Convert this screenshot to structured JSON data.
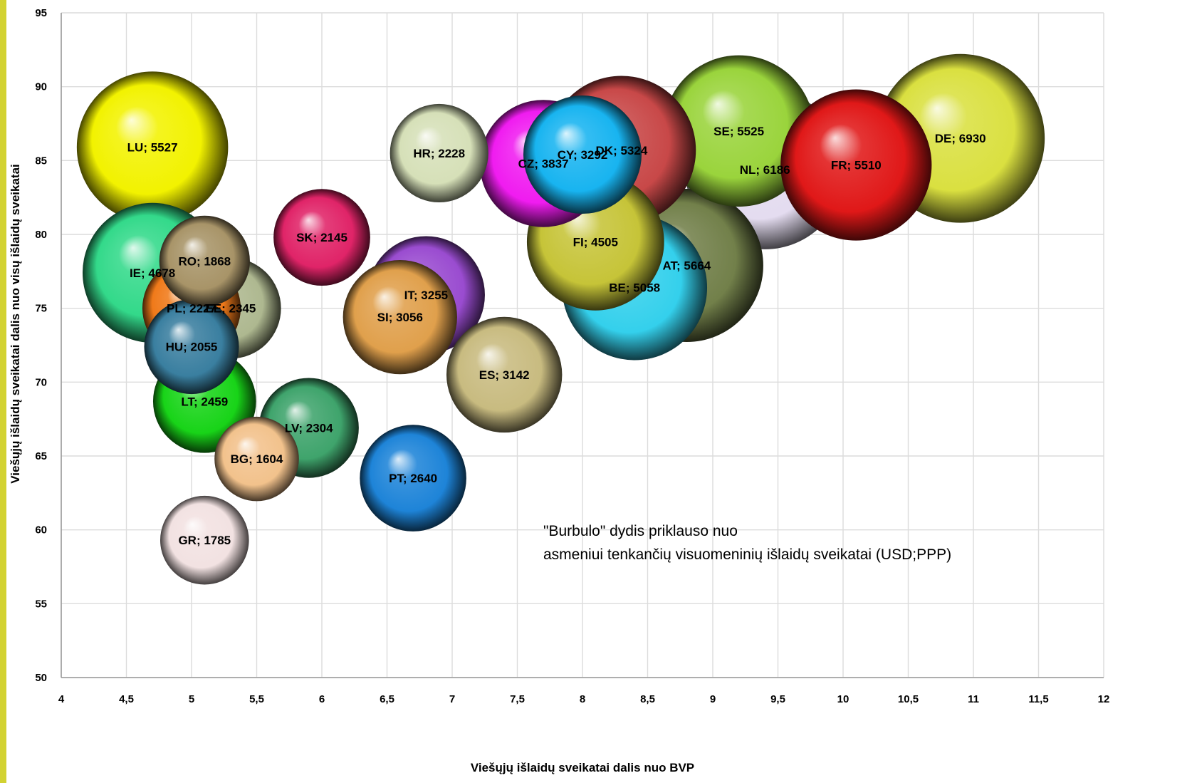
{
  "chart_data": {
    "type": "bubble",
    "xlabel": "Viešųjų išlaidų sveikatai dalis nuo BVP",
    "ylabel": "Viešųjų išlaidų sveikatai dalis nuo visų išlaidų sveikatai",
    "xlim": [
      4,
      12
    ],
    "ylim": [
      50,
      95
    ],
    "x_ticks": [
      "4",
      "4,5",
      "5",
      "5,5",
      "6",
      "6,5",
      "7",
      "7,5",
      "8",
      "8,5",
      "9",
      "9,5",
      "10",
      "10,5",
      "11",
      "11,5",
      "12"
    ],
    "y_ticks": [
      "50",
      "55",
      "60",
      "65",
      "70",
      "75",
      "80",
      "85",
      "90",
      "95"
    ],
    "grid": true,
    "legend": "none",
    "annotation": [
      "\"Burbulo\" dydis priklauso nuo",
      "asmeniui tenkančių visuomeninių išlaidų sveikatai (USD;PPP)"
    ],
    "points": [
      {
        "code": "LU",
        "x": 4.7,
        "y": 85.9,
        "size": 5527,
        "label": "LU; 5527",
        "color": "#f2f200"
      },
      {
        "code": "IE",
        "x": 4.7,
        "y": 77.4,
        "size": 4678,
        "label": "IE; 4678",
        "color": "#33d98a"
      },
      {
        "code": "HU",
        "x": 5.0,
        "y": 72.4,
        "size": 2055,
        "label": "HU; 2055",
        "color": "#3a7fa0"
      },
      {
        "code": "EE",
        "x": 5.3,
        "y": 75.0,
        "size": 2345,
        "label": "EE; 2345",
        "color": "#aeb890"
      },
      {
        "code": "PL",
        "x": 5.0,
        "y": 75.0,
        "size": 2227,
        "label": "PL; 2227",
        "color": "#f07a1a"
      },
      {
        "code": "RO",
        "x": 5.1,
        "y": 78.2,
        "size": 1868,
        "label": "RO; 1868",
        "color": "#a89468"
      },
      {
        "code": "LT",
        "x": 5.1,
        "y": 68.7,
        "size": 2459,
        "label": "LT; 2459",
        "color": "#18d418"
      },
      {
        "code": "LV",
        "x": 5.9,
        "y": 66.9,
        "size": 2304,
        "label": "LV; 2304",
        "color": "#3fa46c"
      },
      {
        "code": "BG",
        "x": 5.5,
        "y": 64.8,
        "size": 1604,
        "label": "BG; 1604",
        "color": "#f2c28c"
      },
      {
        "code": "GR",
        "x": 5.1,
        "y": 59.3,
        "size": 1785,
        "label": "GR; 1785",
        "color": "#f2e2e2"
      },
      {
        "code": "SK",
        "x": 6.0,
        "y": 79.8,
        "size": 2145,
        "label": "SK; 2145",
        "color": "#e02468"
      },
      {
        "code": "IT",
        "x": 6.8,
        "y": 75.9,
        "size": 3255,
        "label": "IT; 3255",
        "color": "#9a4cd0"
      },
      {
        "code": "SI",
        "x": 6.6,
        "y": 74.4,
        "size": 3056,
        "label": "SI; 3056",
        "color": "#e0a04c"
      },
      {
        "code": "ES",
        "x": 7.4,
        "y": 70.5,
        "size": 3142,
        "label": "ES; 3142",
        "color": "#c8bb80"
      },
      {
        "code": "PT",
        "x": 6.7,
        "y": 63.5,
        "size": 2640,
        "label": "PT; 2640",
        "color": "#1e84d8"
      },
      {
        "code": "HR",
        "x": 6.9,
        "y": 85.5,
        "size": 2228,
        "label": "HR; 2228",
        "color": "#d6e0b8"
      },
      {
        "code": "CZ",
        "x": 7.7,
        "y": 84.8,
        "size": 3837,
        "label": "CZ; 3837",
        "color": "#f01cf0"
      },
      {
        "code": "DK",
        "x": 8.3,
        "y": 85.7,
        "size": 5324,
        "label": "DK; 5324",
        "color": "#c84848"
      },
      {
        "code": "SE",
        "x": 9.2,
        "y": 87.0,
        "size": 5525,
        "label": "SE; 5525",
        "color": "#9ad43c"
      },
      {
        "code": "NL",
        "x": 9.4,
        "y": 84.4,
        "size": 6186,
        "label": "NL; 6186",
        "color": "#e4dcf0"
      },
      {
        "code": "DE",
        "x": 10.9,
        "y": 86.5,
        "size": 6930,
        "label": "DE; 6930",
        "color": "#dae040"
      },
      {
        "code": "FR",
        "x": 10.1,
        "y": 84.7,
        "size": 5510,
        "label": "FR; 5510",
        "color": "#e01818"
      },
      {
        "code": "AT",
        "x": 8.8,
        "y": 77.9,
        "size": 5664,
        "label": "AT; 5664",
        "color": "#72804a"
      },
      {
        "code": "BE",
        "x": 8.4,
        "y": 76.4,
        "size": 5058,
        "label": "BE; 5058",
        "color": "#34d0ec"
      },
      {
        "code": "FI",
        "x": 8.1,
        "y": 79.5,
        "size": 4505,
        "label": "FI; 4505",
        "color": "#c6c438"
      },
      {
        "code": "CY",
        "x": 8.0,
        "y": 85.4,
        "size": 3292,
        "label": "CY; 3292",
        "color": "#18b4f0"
      }
    ]
  }
}
